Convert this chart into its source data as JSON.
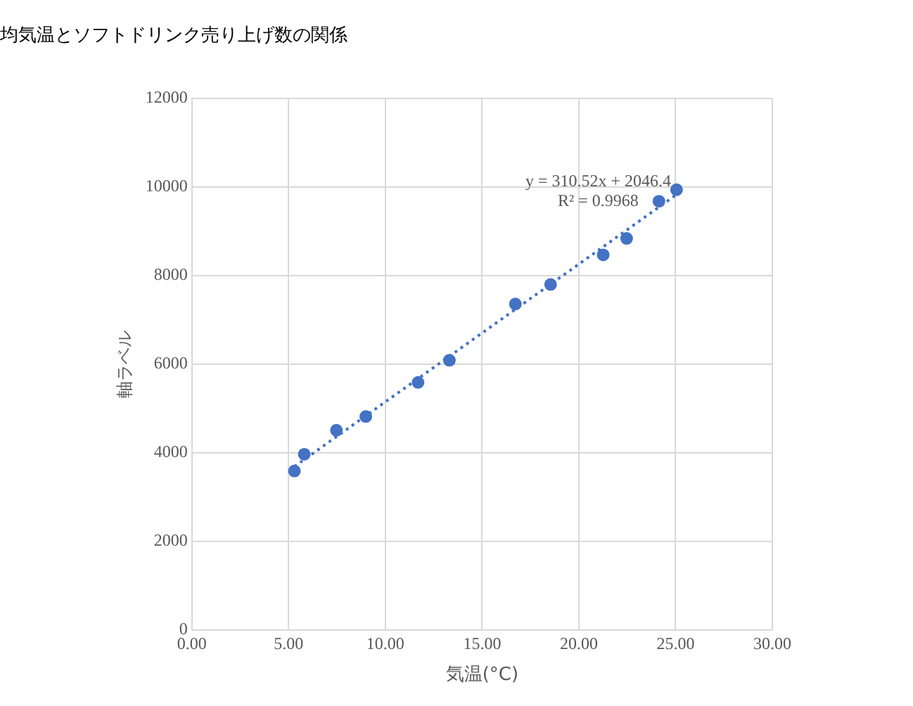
{
  "chart_data": {
    "type": "scatter",
    "title": "均気温とソフトドリンク売り上げ数の関係",
    "xlabel": "気温(°C)",
    "ylabel": "軸ラベル",
    "annotations": [
      "y = 310.52x + 2046.4",
      "R² = 0.9968"
    ],
    "series": [
      {
        "color": "#4472c4",
        "marker": "circle",
        "x": [
          5.3,
          5.81,
          7.47,
          8.99,
          11.69,
          13.31,
          16.72,
          18.54,
          21.26,
          22.47,
          24.14,
          25.05
        ],
        "values": [
          3590,
          3970,
          4510,
          4820,
          5590,
          6090,
          7360,
          7800,
          8470,
          8840,
          9680,
          9940
        ]
      },
      {
        "type": "line",
        "color": "#4472c4",
        "marker": "none",
        "line_style": "dotted",
        "x": [
          5.3,
          25.05
        ],
        "values": [
          3690,
          9830
        ]
      }
    ],
    "xlim": [
      0,
      30
    ],
    "xticks": [
      {
        "value": 0,
        "label": "0.00"
      },
      {
        "value": 5,
        "label": "5.00"
      },
      {
        "value": 10,
        "label": "10.00"
      },
      {
        "value": 15,
        "label": "15.00"
      },
      {
        "value": 20,
        "label": "20.00"
      },
      {
        "value": 25,
        "label": "25.00"
      },
      {
        "value": 30,
        "label": "30.00"
      }
    ],
    "ylim": [
      0,
      12000
    ],
    "yticks": [
      0,
      2000,
      4000,
      6000,
      8000,
      10000,
      12000
    ],
    "grid": true,
    "legend": false
  }
}
